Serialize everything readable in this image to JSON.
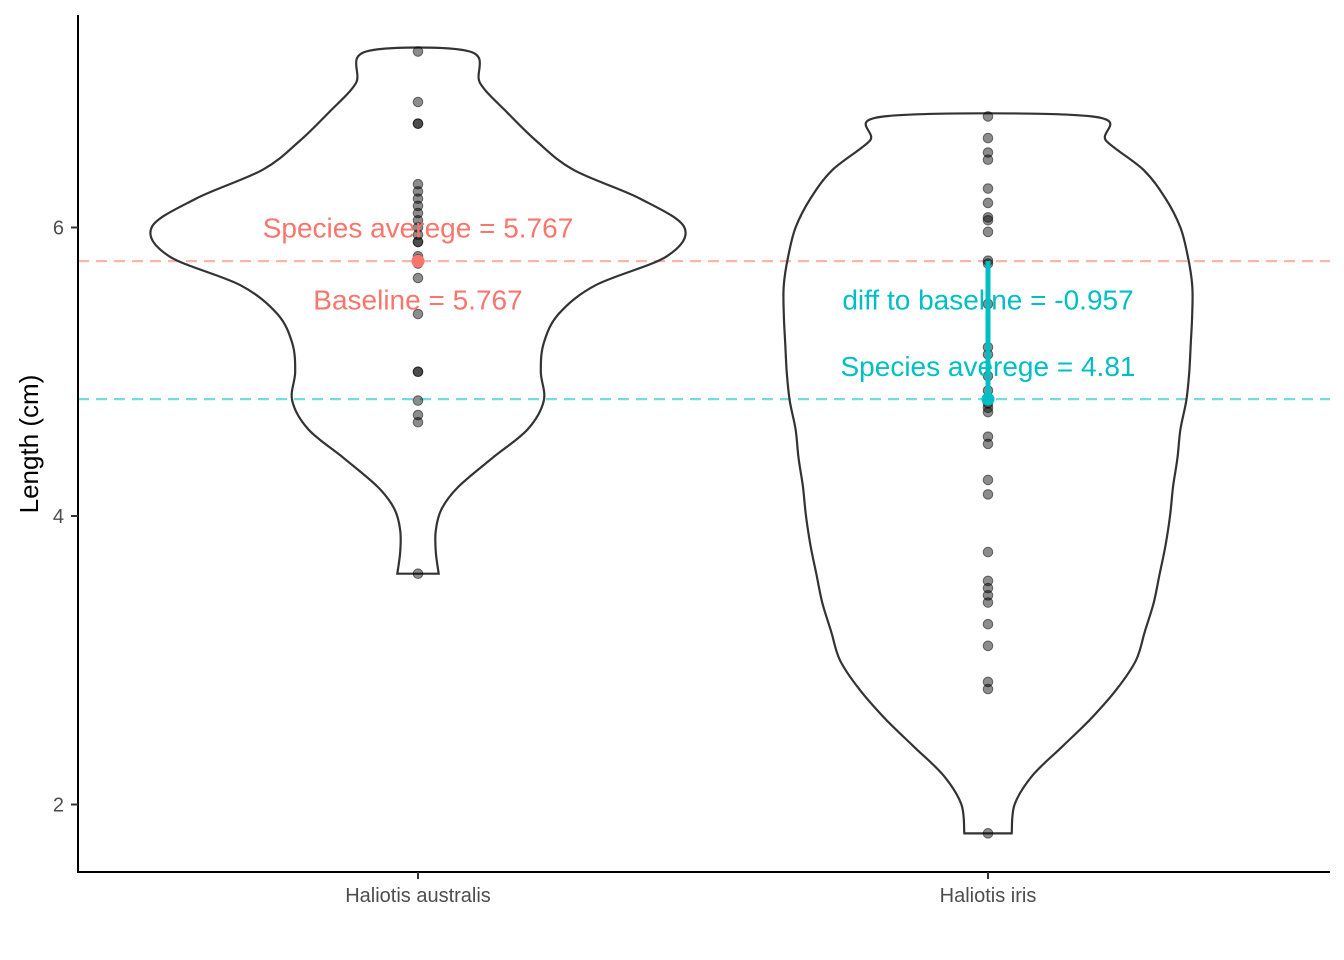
{
  "chart_data": {
    "type": "violin",
    "title": "",
    "xlabel": "",
    "ylabel": "Length (cm)",
    "ylim": [
      1.55,
      7.5
    ],
    "yticks": [
      2,
      4,
      6
    ],
    "grid": false,
    "legend": "none",
    "categories": [
      "Haliotis australis",
      "Haliotis iris"
    ],
    "groups": [
      {
        "name": "Haliotis australis",
        "color": "#F8766D",
        "mean": 5.767,
        "range": [
          3.6,
          7.22
        ],
        "points": [
          7.22,
          6.87,
          6.72,
          6.72,
          6.3,
          6.25,
          6.2,
          6.15,
          6.1,
          6.05,
          6.0,
          5.95,
          5.9,
          5.9,
          5.8,
          5.78,
          5.75,
          5.65,
          5.4,
          5.0,
          5.0,
          4.8,
          4.7,
          4.65,
          3.6
        ],
        "violin_profile": [
          [
            3.6,
            0.14
          ],
          [
            3.75,
            0.12
          ],
          [
            3.9,
            0.12
          ],
          [
            4.05,
            0.16
          ],
          [
            4.2,
            0.27
          ],
          [
            4.4,
            0.5
          ],
          [
            4.6,
            0.74
          ],
          [
            4.8,
            0.85
          ],
          [
            5.0,
            0.83
          ],
          [
            5.2,
            0.85
          ],
          [
            5.4,
            0.95
          ],
          [
            5.6,
            1.2
          ],
          [
            5.8,
            1.68
          ],
          [
            6.0,
            1.8
          ],
          [
            6.2,
            1.5
          ],
          [
            6.4,
            1.05
          ],
          [
            6.6,
            0.8
          ],
          [
            6.8,
            0.6
          ],
          [
            7.0,
            0.42
          ],
          [
            7.22,
            0.35
          ]
        ]
      },
      {
        "name": "Haliotis iris",
        "color": "#00BFC4",
        "mean": 4.81,
        "range": [
          1.8,
          6.77
        ],
        "points": [
          6.77,
          6.62,
          6.52,
          6.47,
          6.27,
          6.17,
          6.07,
          6.05,
          5.97,
          5.77,
          5.75,
          5.47,
          5.17,
          5.12,
          4.97,
          4.87,
          4.8,
          4.78,
          4.75,
          4.72,
          4.55,
          4.5,
          4.25,
          4.15,
          3.75,
          3.55,
          3.5,
          3.45,
          3.4,
          3.25,
          3.1,
          2.85,
          2.8,
          1.8
        ],
        "violin_profile": [
          [
            1.8,
            0.16
          ],
          [
            2.0,
            0.18
          ],
          [
            2.2,
            0.3
          ],
          [
            2.4,
            0.5
          ],
          [
            2.6,
            0.7
          ],
          [
            2.8,
            0.87
          ],
          [
            3.0,
            1.0
          ],
          [
            3.2,
            1.06
          ],
          [
            3.4,
            1.12
          ],
          [
            3.6,
            1.16
          ],
          [
            3.8,
            1.2
          ],
          [
            4.0,
            1.23
          ],
          [
            4.2,
            1.25
          ],
          [
            4.4,
            1.28
          ],
          [
            4.6,
            1.3
          ],
          [
            4.8,
            1.34
          ],
          [
            5.0,
            1.36
          ],
          [
            5.2,
            1.37
          ],
          [
            5.4,
            1.38
          ],
          [
            5.6,
            1.38
          ],
          [
            5.8,
            1.35
          ],
          [
            6.0,
            1.3
          ],
          [
            6.2,
            1.2
          ],
          [
            6.4,
            1.05
          ],
          [
            6.6,
            0.8
          ],
          [
            6.77,
            0.7
          ]
        ]
      }
    ],
    "reference_lines": [
      {
        "group": "Haliotis australis",
        "y": 5.767,
        "style": "dashed",
        "color": "#F8766D"
      },
      {
        "group": "Haliotis iris",
        "y": 4.81,
        "style": "dashed",
        "color": "#00BFC4"
      }
    ],
    "diff_segment": {
      "group": "Haliotis iris",
      "from": 5.767,
      "to": 4.81,
      "color": "#00BFC4"
    },
    "annotations": [
      {
        "group": "Haliotis australis",
        "y": 6.0,
        "text": "Species averege = 5.767",
        "color": "#F8766D"
      },
      {
        "group": "Haliotis australis",
        "y": 5.5,
        "text": "Baseline = 5.767",
        "color": "#F8766D"
      },
      {
        "group": "Haliotis iris",
        "y": 5.5,
        "text": "diff to baseline = -0.957",
        "color": "#00BFC4"
      },
      {
        "group": "Haliotis iris",
        "y": 5.04,
        "text": "Species averege = 4.81",
        "color": "#00BFC4"
      }
    ]
  }
}
